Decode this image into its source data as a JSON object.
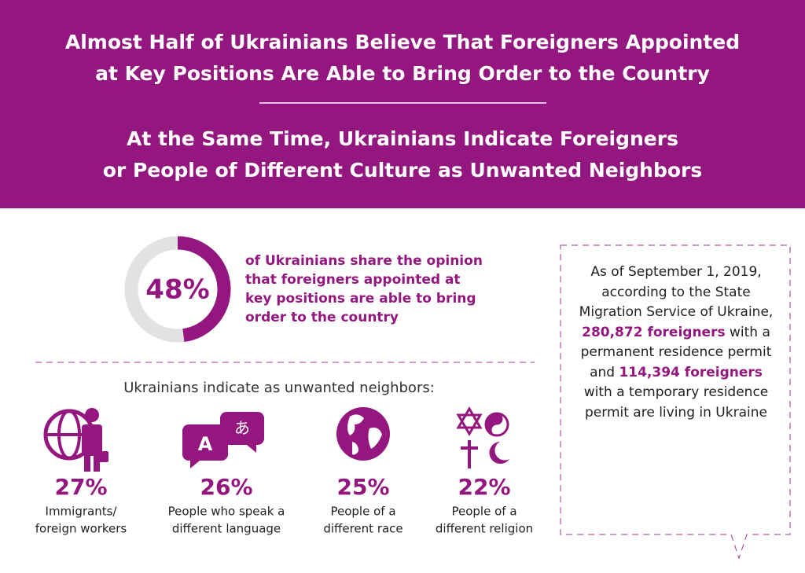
{
  "header": {
    "title": [
      "Almost Half of Ukrainians Believe That Foreigners Appointed",
      "at Key Positions Are Able to Bring Order to the Country"
    ],
    "subtitle": [
      "At the Same Time, Ukrainians Indicate Foreigners",
      "or People of Different Culture as Unwanted Neighbors"
    ]
  },
  "donut": {
    "value": 48,
    "label": "48%",
    "max": 100,
    "color": "#93177f",
    "track_color": "#e2e2e2",
    "text": "of Ukrainians share the opinion that foreigners appointed at key positions are able to bring order to the country"
  },
  "neighbors": {
    "heading": "Ukrainians indicate as unwanted neighbors:",
    "items": [
      {
        "percent": "27%",
        "text": [
          "Immigrants/",
          "foreign workers"
        ]
      },
      {
        "percent": "26%",
        "text": [
          "People who speak a",
          "different language"
        ]
      },
      {
        "percent": "25%",
        "text": [
          "People of a",
          "different race"
        ]
      },
      {
        "percent": "22%",
        "text": [
          "People of a",
          "different religion"
        ]
      }
    ]
  },
  "note": {
    "parts": [
      "As of September 1, 2019, according to the State Migration Service of Ukraine, ",
      "280,872 foreigners",
      " with a permanent residence permit and ",
      "114,394 foreigners",
      " with a temporary residence permit are living in Ukraine"
    ]
  }
}
